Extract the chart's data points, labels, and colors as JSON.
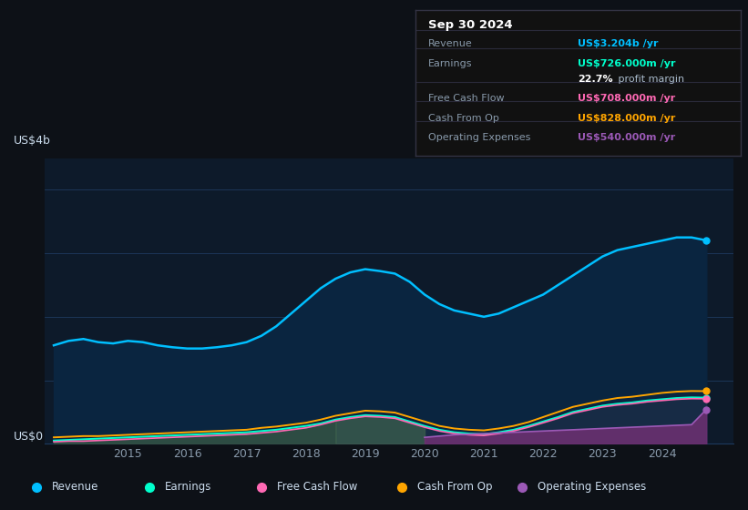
{
  "bg_color": "#0d1117",
  "plot_bg_color": "#0d1a2a",
  "ylabel": "US$4b",
  "y0label": "US$0",
  "years": [
    2013.75,
    2014.0,
    2014.25,
    2014.5,
    2014.75,
    2015.0,
    2015.25,
    2015.5,
    2015.75,
    2016.0,
    2016.25,
    2016.5,
    2016.75,
    2017.0,
    2017.25,
    2017.5,
    2017.75,
    2018.0,
    2018.25,
    2018.5,
    2018.75,
    2019.0,
    2019.25,
    2019.5,
    2019.75,
    2020.0,
    2020.25,
    2020.5,
    2020.75,
    2021.0,
    2021.25,
    2021.5,
    2021.75,
    2022.0,
    2022.25,
    2022.5,
    2022.75,
    2023.0,
    2023.25,
    2023.5,
    2023.75,
    2024.0,
    2024.25,
    2024.5,
    2024.75
  ],
  "revenue": [
    1.55,
    1.62,
    1.65,
    1.6,
    1.58,
    1.62,
    1.6,
    1.55,
    1.52,
    1.5,
    1.5,
    1.52,
    1.55,
    1.6,
    1.7,
    1.85,
    2.05,
    2.25,
    2.45,
    2.6,
    2.7,
    2.75,
    2.72,
    2.68,
    2.55,
    2.35,
    2.2,
    2.1,
    2.05,
    2.0,
    2.05,
    2.15,
    2.25,
    2.35,
    2.5,
    2.65,
    2.8,
    2.95,
    3.05,
    3.1,
    3.15,
    3.2,
    3.25,
    3.25,
    3.204
  ],
  "earnings": [
    0.05,
    0.06,
    0.07,
    0.08,
    0.09,
    0.1,
    0.11,
    0.12,
    0.13,
    0.14,
    0.15,
    0.16,
    0.17,
    0.18,
    0.2,
    0.22,
    0.25,
    0.28,
    0.32,
    0.38,
    0.42,
    0.45,
    0.44,
    0.42,
    0.35,
    0.28,
    0.22,
    0.18,
    0.16,
    0.15,
    0.18,
    0.22,
    0.28,
    0.35,
    0.42,
    0.5,
    0.55,
    0.6,
    0.63,
    0.65,
    0.68,
    0.7,
    0.72,
    0.73,
    0.726
  ],
  "free_cash_flow": [
    0.03,
    0.04,
    0.04,
    0.05,
    0.06,
    0.07,
    0.08,
    0.09,
    0.1,
    0.11,
    0.12,
    0.13,
    0.14,
    0.15,
    0.17,
    0.19,
    0.22,
    0.25,
    0.3,
    0.36,
    0.4,
    0.43,
    0.42,
    0.4,
    0.33,
    0.26,
    0.2,
    0.16,
    0.14,
    0.13,
    0.16,
    0.2,
    0.26,
    0.33,
    0.4,
    0.48,
    0.53,
    0.58,
    0.61,
    0.63,
    0.66,
    0.68,
    0.7,
    0.71,
    0.708
  ],
  "cash_from_op": [
    0.1,
    0.11,
    0.12,
    0.12,
    0.13,
    0.14,
    0.15,
    0.16,
    0.17,
    0.18,
    0.19,
    0.2,
    0.21,
    0.22,
    0.25,
    0.27,
    0.3,
    0.33,
    0.38,
    0.44,
    0.48,
    0.52,
    0.51,
    0.49,
    0.42,
    0.35,
    0.28,
    0.24,
    0.22,
    0.21,
    0.24,
    0.28,
    0.34,
    0.42,
    0.5,
    0.58,
    0.63,
    0.68,
    0.72,
    0.74,
    0.77,
    0.8,
    0.82,
    0.83,
    0.828
  ],
  "op_expenses": [
    0.0,
    0.0,
    0.0,
    0.0,
    0.0,
    0.0,
    0.0,
    0.0,
    0.0,
    0.0,
    0.0,
    0.0,
    0.0,
    0.0,
    0.0,
    0.0,
    0.0,
    0.0,
    0.0,
    0.0,
    0.0,
    0.0,
    0.0,
    0.0,
    0.0,
    0.1,
    0.12,
    0.14,
    0.15,
    0.16,
    0.17,
    0.18,
    0.19,
    0.2,
    0.21,
    0.22,
    0.23,
    0.24,
    0.25,
    0.26,
    0.27,
    0.28,
    0.29,
    0.3,
    0.54
  ],
  "revenue_color": "#00bfff",
  "earnings_color": "#00ffcc",
  "fcf_color": "#ff69b4",
  "cashop_color": "#ffa500",
  "opex_color": "#9b59b6",
  "grid_color": "#1e3a5f",
  "tick_color": "#8899aa",
  "label_color": "#ccddee",
  "info_box": {
    "date": "Sep 30 2024",
    "rows": [
      {
        "label": "Revenue",
        "value": "US$3.204b /yr",
        "value_color": "#00bfff"
      },
      {
        "label": "Earnings",
        "value": "US$726.000m /yr",
        "value_color": "#00ffcc"
      },
      {
        "label": "",
        "value": "22.7% profit margin",
        "value_color": "#ffffff",
        "bold_prefix": "22.7%"
      },
      {
        "label": "Free Cash Flow",
        "value": "US$708.000m /yr",
        "value_color": "#ff69b4"
      },
      {
        "label": "Cash From Op",
        "value": "US$828.000m /yr",
        "value_color": "#ffa500"
      },
      {
        "label": "Operating Expenses",
        "value": "US$540.000m /yr",
        "value_color": "#9b59b6"
      }
    ]
  },
  "legend": [
    {
      "label": "Revenue",
      "color": "#00bfff"
    },
    {
      "label": "Earnings",
      "color": "#00ffcc"
    },
    {
      "label": "Free Cash Flow",
      "color": "#ff69b4"
    },
    {
      "label": "Cash From Op",
      "color": "#ffa500"
    },
    {
      "label": "Operating Expenses",
      "color": "#9b59b6"
    }
  ],
  "xlim": [
    2013.6,
    2025.2
  ],
  "ylim": [
    0,
    4.5
  ],
  "xticks": [
    2015,
    2016,
    2017,
    2018,
    2019,
    2020,
    2021,
    2022,
    2023,
    2024
  ],
  "grid_yvals": [
    1.0,
    2.0,
    3.0,
    4.0
  ],
  "divider_yvals": [
    0.865,
    0.735,
    0.505,
    0.375,
    0.235
  ]
}
